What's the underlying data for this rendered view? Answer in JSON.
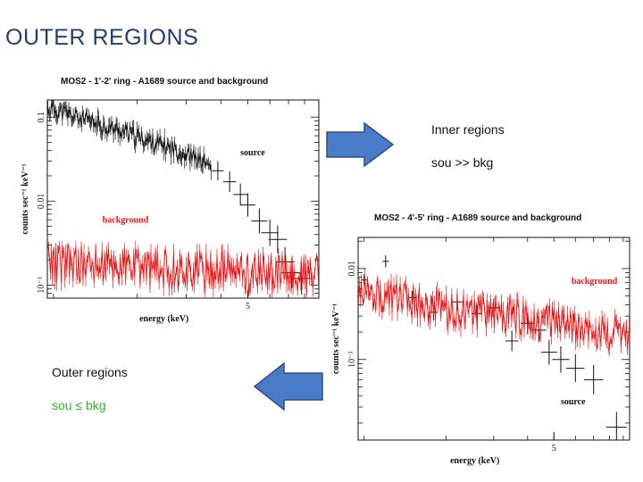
{
  "slide": {
    "title": "OUTER REGIONS",
    "inner_label": "Inner regions",
    "inner_relation": "sou >> bkg",
    "outer_label": "Outer regions",
    "outer_relation": "sou ≤ bkg"
  },
  "colors": {
    "title": "#1f3f6e",
    "arrow": "#4a7bc8",
    "arrow_edge": "#2f4f80",
    "source": "#111111",
    "background": "#ee1111",
    "green_text": "#2cb52c"
  },
  "chart_data": [
    {
      "type": "scatter",
      "title": "MOS2 - 1'-2' ring - A1689 source and background",
      "xlabel": "energy (keV)",
      "ylabel": "counts sec⁻¹ keV⁻¹",
      "xscale": "log",
      "yscale": "log",
      "xticks": [
        {
          "value": 5,
          "label": "5"
        }
      ],
      "yticks": [
        {
          "value": 0.1,
          "label": "0.1"
        },
        {
          "value": 0.01,
          "label": "0.01"
        },
        {
          "value": 0.001,
          "label": "10⁻³"
        }
      ],
      "xlim": [
        0.95,
        9
      ],
      "ylim": [
        0.0007,
        0.16
      ],
      "grid": false,
      "annotations": [
        {
          "text": "source",
          "x": 4.7,
          "y": 0.035,
          "color": "#111111"
        },
        {
          "text": "background",
          "x": 1.5,
          "y": 0.0055,
          "color": "#ee1111"
        }
      ],
      "series": [
        {
          "name": "source",
          "color": "#111111",
          "x": [
            1.0,
            1.3,
            1.7,
            2.2,
            2.8,
            3.4,
            3.9,
            4.3,
            4.7,
            5.0,
            5.5,
            6.0,
            6.4,
            6.8,
            7.2,
            7.8
          ],
          "y": [
            0.125,
            0.09,
            0.07,
            0.052,
            0.04,
            0.03,
            0.023,
            0.017,
            0.012,
            0.009,
            0.0058,
            0.0042,
            0.0035,
            0.0019,
            0.0014,
            0.0012
          ]
        },
        {
          "name": "background",
          "color": "#ee1111",
          "x": [
            1.0,
            1.5,
            2.0,
            3.0,
            4.0,
            5.0,
            6.0,
            7.0,
            8.0,
            9.0
          ],
          "y": [
            0.0018,
            0.0017,
            0.0016,
            0.0015,
            0.0015,
            0.0014,
            0.0014,
            0.0013,
            0.0013,
            0.0013
          ]
        }
      ]
    },
    {
      "type": "scatter",
      "title": "MOS2 - 4'-5' ring - A1689 source and background",
      "xlabel": "energy (keV)",
      "ylabel": "counts sec⁻¹ keV⁻¹",
      "xscale": "log",
      "yscale": "log",
      "xticks": [
        {
          "value": 5,
          "label": "5"
        }
      ],
      "yticks": [
        {
          "value": 0.01,
          "label": "0.01"
        },
        {
          "value": 0.001,
          "label": "10⁻³"
        }
      ],
      "xlim": [
        0.95,
        9.5
      ],
      "ylim": [
        0.00013,
        0.022
      ],
      "grid": false,
      "annotations": [
        {
          "text": "background",
          "x": 5.8,
          "y": 0.0068,
          "color": "#ee1111"
        },
        {
          "text": "source",
          "x": 5.3,
          "y": 0.00032,
          "color": "#111111"
        }
      ],
      "series": [
        {
          "name": "source",
          "color": "#111111",
          "x": [
            1.0,
            1.2,
            1.5,
            1.8,
            2.2,
            2.6,
            3.0,
            3.5,
            4.0,
            4.4,
            4.8,
            5.3,
            6.0,
            7.0,
            8.5
          ],
          "y": [
            0.0075,
            0.012,
            0.0048,
            0.0033,
            0.0043,
            0.0032,
            0.0037,
            0.0016,
            0.0025,
            0.0021,
            0.0012,
            0.001,
            0.0008,
            0.0006,
            0.00018
          ]
        },
        {
          "name": "background",
          "color": "#ee1111",
          "x": [
            1.0,
            1.5,
            2.0,
            3.0,
            4.0,
            5.0,
            6.0,
            7.0,
            8.0,
            9.0
          ],
          "y": [
            0.0058,
            0.0042,
            0.0035,
            0.0032,
            0.0028,
            0.0025,
            0.0023,
            0.0021,
            0.0019,
            0.0018
          ]
        }
      ]
    }
  ]
}
